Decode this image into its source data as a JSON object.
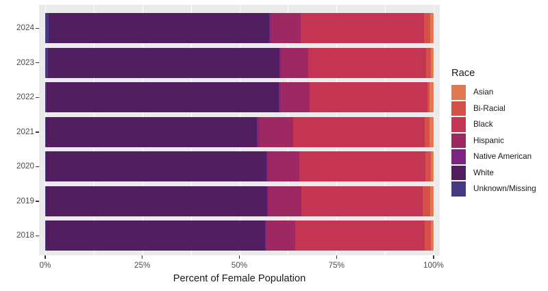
{
  "chart_data": {
    "type": "bar",
    "orientation": "horizontal",
    "stacked": true,
    "normalized_to_100pct": true,
    "title": "",
    "xlabel": "Percent of Female Population",
    "ylabel": "",
    "categories": [
      "2024",
      "2023",
      "2022",
      "2021",
      "2020",
      "2019",
      "2018"
    ],
    "x_ticks": [
      {
        "value": 0,
        "label": "0%"
      },
      {
        "value": 25,
        "label": "25%"
      },
      {
        "value": 50,
        "label": "50%"
      },
      {
        "value": 75,
        "label": "75%"
      },
      {
        "value": 100,
        "label": "100%"
      }
    ],
    "xlim": [
      0,
      100
    ],
    "grid_step_percent": 12.5,
    "legend_title": "Race",
    "legend_position": "right",
    "legend_order": [
      "Asian",
      "Bi-Racial",
      "Black",
      "Hispanic",
      "Native American",
      "White",
      "Unknown/Missing"
    ],
    "stack_order_left_to_right": [
      "Unknown/Missing",
      "White",
      "Native American",
      "Hispanic",
      "Black",
      "Bi-Racial",
      "Asian"
    ],
    "series": [
      {
        "name": "Unknown/Missing",
        "color": "#473A85",
        "values": [
          0.9,
          0.7,
          0.3,
          0.2,
          0.2,
          0.2,
          0.2
        ]
      },
      {
        "name": "White",
        "color": "#511F5F",
        "values": [
          56.8,
          59.7,
          59.9,
          54.3,
          56.8,
          56.9,
          56.5
        ]
      },
      {
        "name": "Native American",
        "color": "#7D2582",
        "values": [
          0.4,
          0.3,
          0.3,
          0.5,
          0.4,
          0.4,
          0.3
        ]
      },
      {
        "name": "Hispanic",
        "color": "#9E2962",
        "values": [
          7.7,
          7.0,
          7.6,
          8.8,
          8.0,
          8.5,
          7.3
        ]
      },
      {
        "name": "Black",
        "color": "#C33553",
        "values": [
          31.8,
          30.4,
          30.3,
          33.9,
          32.4,
          31.1,
          33.5
        ]
      },
      {
        "name": "Bi-Racial",
        "color": "#D6504A",
        "values": [
          1.6,
          1.2,
          0.6,
          1.3,
          1.5,
          2.0,
          1.5
        ]
      },
      {
        "name": "Asian",
        "color": "#E07952",
        "values": [
          0.8,
          0.7,
          1.0,
          1.0,
          0.7,
          0.9,
          0.7
        ]
      }
    ]
  },
  "style": {
    "panel_background": "#EBEBEB",
    "grid_color": "#FFFFFF",
    "tick_color": "#333333",
    "axis_text_color": "#4D4D4D",
    "title_text_color": "#1A1A1A",
    "figure_background": "#FFFFFF"
  }
}
